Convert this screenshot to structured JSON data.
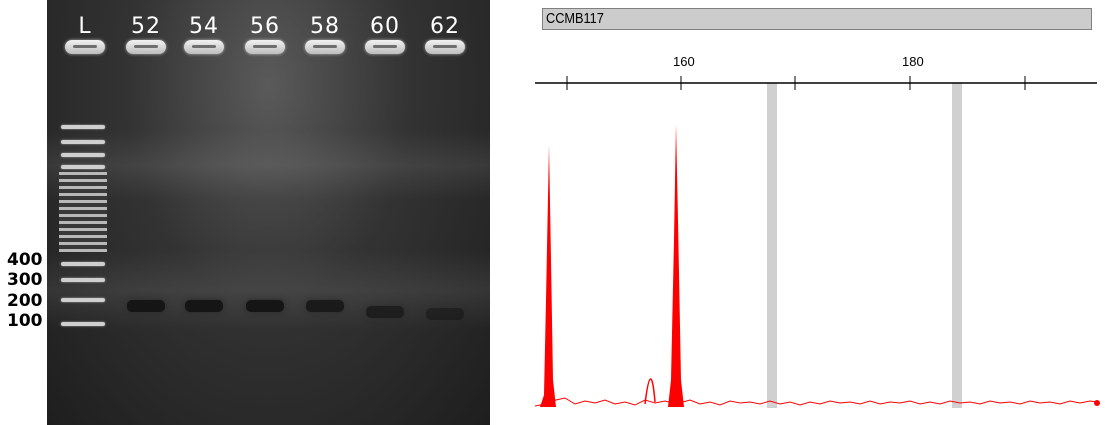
{
  "gel": {
    "lanes": [
      {
        "label": "L"
      },
      {
        "label": "52"
      },
      {
        "label": "54"
      },
      {
        "label": "56"
      },
      {
        "label": "58"
      },
      {
        "label": "60"
      },
      {
        "label": "62"
      }
    ],
    "size_markers": [
      "400",
      "300",
      "200",
      "100"
    ]
  },
  "trace": {
    "marker_name": "CCMB117",
    "axis_ticks": [
      "160",
      "180"
    ],
    "trace_color": "#ff0000",
    "bin_color": "#d0d0d0"
  }
}
